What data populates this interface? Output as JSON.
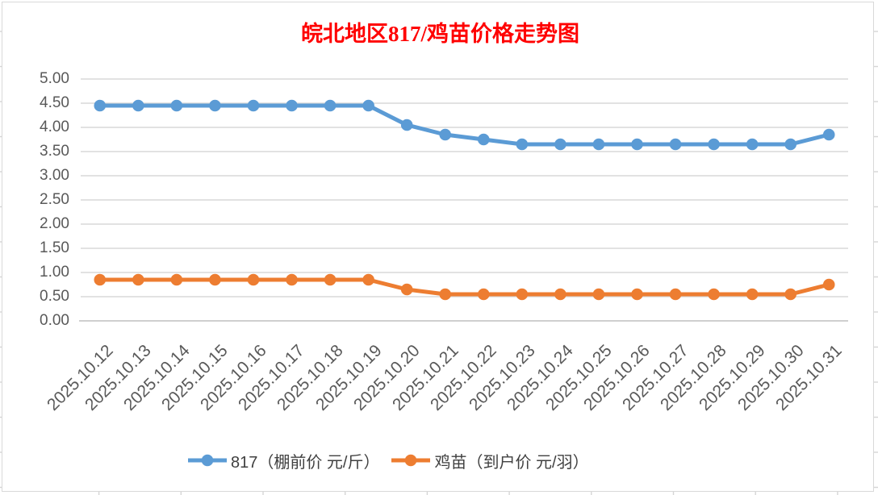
{
  "title": {
    "text": "皖北地区817/鸡苗价格走势图",
    "color": "#FF0000"
  },
  "chart_data": {
    "type": "line",
    "x": [
      "2025.10.12",
      "2025.10.13",
      "2025.10.14",
      "2025.10.15",
      "2025.10.16",
      "2025.10.17",
      "2025.10.18",
      "2025.10.19",
      "2025.10.20",
      "2025.10.21",
      "2025.10.22",
      "2025.10.23",
      "2025.10.24",
      "2025.10.25",
      "2025.10.26",
      "2025.10.27",
      "2025.10.28",
      "2025.10.29",
      "2025.10.30",
      "2025.10.31"
    ],
    "series": [
      {
        "name": "817（棚前价 元/斤）",
        "color": "#5B9BD5",
        "values": [
          4.45,
          4.45,
          4.45,
          4.45,
          4.45,
          4.45,
          4.45,
          4.45,
          4.05,
          3.85,
          3.75,
          3.65,
          3.65,
          3.65,
          3.65,
          3.65,
          3.65,
          3.65,
          3.65,
          3.85
        ]
      },
      {
        "name": "鸡苗（到户价 元/羽）",
        "color": "#ED7D31",
        "values": [
          0.85,
          0.85,
          0.85,
          0.85,
          0.85,
          0.85,
          0.85,
          0.85,
          0.65,
          0.55,
          0.55,
          0.55,
          0.55,
          0.55,
          0.55,
          0.55,
          0.55,
          0.55,
          0.55,
          0.75
        ]
      }
    ],
    "title": "皖北地区817/鸡苗价格走势图",
    "xlabel": "",
    "ylabel": "",
    "ylim": [
      0,
      5
    ],
    "ytick_step": 0.5,
    "ytick_decimals": 2,
    "grid": true,
    "legend_position": "bottom"
  },
  "colors": {
    "grid": "#D9D9D9",
    "axis_line": "#BFBFBF",
    "tick_text": "#595959",
    "legend_text": "#404040",
    "frame_border": "#D9D9D9"
  }
}
